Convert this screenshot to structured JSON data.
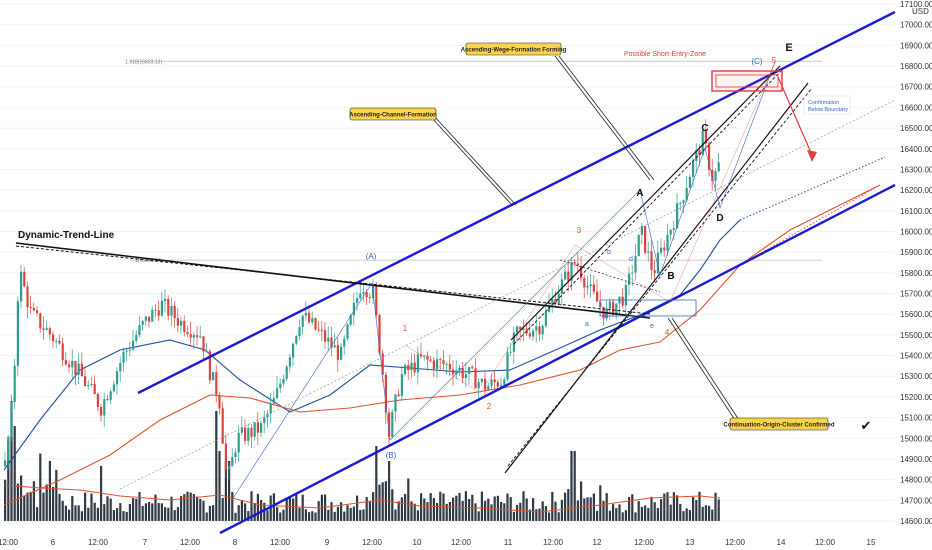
{
  "chart_data": {
    "type": "candlestick",
    "currency": "USD",
    "ylim": [
      14550,
      17200
    ],
    "y_ticks": [
      14600,
      14700,
      14800,
      14900,
      15000,
      15100,
      15200,
      15300,
      15400,
      15500,
      15600,
      15700,
      15800,
      15900,
      16000,
      16100,
      16200,
      16300,
      16400,
      16500,
      16600,
      16700,
      16800,
      16900,
      17000,
      17100
    ],
    "y_tick_labels": [
      "14600.00",
      "14700.00",
      "14800.00",
      "14900.00",
      "15000.00",
      "15100.00",
      "15200.00",
      "15300.00",
      "15400.00",
      "15500.00",
      "15600.00",
      "15700.00",
      "15800.00",
      "15900.00",
      "16000.00",
      "16100.00",
      "16200.00",
      "16300.00",
      "16400.00",
      "16500.00",
      "16600.00",
      "16700.00",
      "16800.00",
      "16900.00",
      "17000.00",
      "17100.00"
    ],
    "x_ticks": [
      "12:00",
      "6",
      "12:00",
      "7",
      "12:00",
      "8",
      "12:00",
      "9",
      "12:00",
      "10",
      "12:00",
      "11",
      "12:00",
      "12",
      "12:00",
      "13",
      "12:00",
      "14",
      "12:00",
      "15"
    ],
    "levels": [
      {
        "label": "1.618(16823.13)",
        "price": 16823.13
      },
      {
        "label": "1(15861.34)",
        "price": 15861.34
      }
    ],
    "annotations": {
      "dynamic_trend_line": "Dynamic-Trend-Line",
      "ascending_channel": "Ascending-Channel-Formation",
      "ascending_wedge": "Ascending-Wege-Formation Forming",
      "short_entry": "Possible Short-Entry-Zone",
      "confirmation": "Confirmation Below Boundary",
      "continuation": "Continuation-Origin-Cluster Confirmed"
    },
    "wave_labels": {
      "A_paren": "(A)",
      "B_paren": "(B)",
      "C_paren": "(C)",
      "A": "A",
      "B": "B",
      "C": "C",
      "D": "D",
      "E": "E",
      "w1": "1",
      "w2": "2",
      "w3": "3",
      "w4": "4",
      "w5": "5",
      "a": "a",
      "b": "b",
      "c": "c",
      "d": "d",
      "e": "e"
    },
    "colors": {
      "channel": "#1a1ad6",
      "up": "#2e9e8f",
      "down": "#e0413a",
      "volume": "#2f3a44",
      "ema_blue": "#1f4e9c",
      "ema_red": "#e2502c",
      "short_zone": "#e23b3b",
      "label_red": "#e0582a",
      "label_blue": "#3766c7",
      "callout": "#fcd34d"
    },
    "candle_seed": 7,
    "candle_anchors": [
      [
        0,
        14700
      ],
      [
        12,
        15200
      ],
      [
        18,
        15820
      ],
      [
        30,
        15600
      ],
      [
        50,
        15500
      ],
      [
        80,
        15300
      ],
      [
        100,
        15150
      ],
      [
        122,
        15400
      ],
      [
        142,
        15550
      ],
      [
        160,
        15650
      ],
      [
        180,
        15560
      ],
      [
        200,
        15500
      ],
      [
        210,
        15300
      ],
      [
        218,
        15200
      ],
      [
        226,
        14780
      ],
      [
        236,
        15000
      ],
      [
        260,
        15050
      ],
      [
        275,
        15200
      ],
      [
        300,
        15600
      ],
      [
        320,
        15500
      ],
      [
        340,
        15400
      ],
      [
        360,
        15750
      ],
      [
        372,
        15700
      ],
      [
        382,
        15300
      ],
      [
        388,
        15020
      ],
      [
        400,
        15300
      ],
      [
        420,
        15380
      ],
      [
        450,
        15350
      ],
      [
        470,
        15300
      ],
      [
        485,
        15250
      ],
      [
        500,
        15280
      ],
      [
        515,
        15500
      ],
      [
        540,
        15550
      ],
      [
        555,
        15700
      ],
      [
        575,
        15860
      ],
      [
        590,
        15700
      ],
      [
        605,
        15600
      ],
      [
        625,
        15700
      ],
      [
        640,
        16000
      ],
      [
        652,
        15800
      ],
      [
        660,
        15900
      ],
      [
        680,
        16150
      ],
      [
        690,
        16300
      ],
      [
        702,
        16450
      ],
      [
        712,
        16250
      ],
      [
        720,
        16350
      ]
    ],
    "check_mark": "✔"
  }
}
